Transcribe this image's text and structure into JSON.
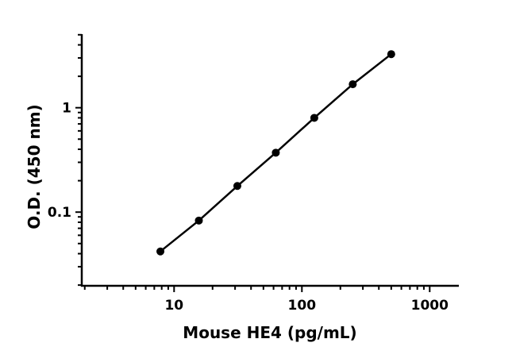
{
  "chart_data": {
    "type": "line",
    "xlabel": "Mouse HE4 (pg/mL)",
    "ylabel": "O.D. (450 nm)",
    "x_scale": "log",
    "y_scale": "log",
    "xlim": [
      2,
      1700
    ],
    "ylim": [
      0.02,
      5
    ],
    "x_ticks": [
      {
        "value": 10,
        "label": "10"
      },
      {
        "value": 100,
        "label": "100"
      },
      {
        "value": 1000,
        "label": "1000"
      }
    ],
    "y_ticks": [
      {
        "value": 0.1,
        "label": "0.1"
      },
      {
        "value": 1,
        "label": "1"
      }
    ],
    "grid": false,
    "series": [
      {
        "color": "#000000",
        "marker": "circle",
        "x": [
          7.8125,
          15.625,
          31.25,
          62.5,
          125,
          250,
          500
        ],
        "y": [
          0.042,
          0.083,
          0.178,
          0.371,
          0.8,
          1.68,
          3.26
        ]
      }
    ]
  }
}
